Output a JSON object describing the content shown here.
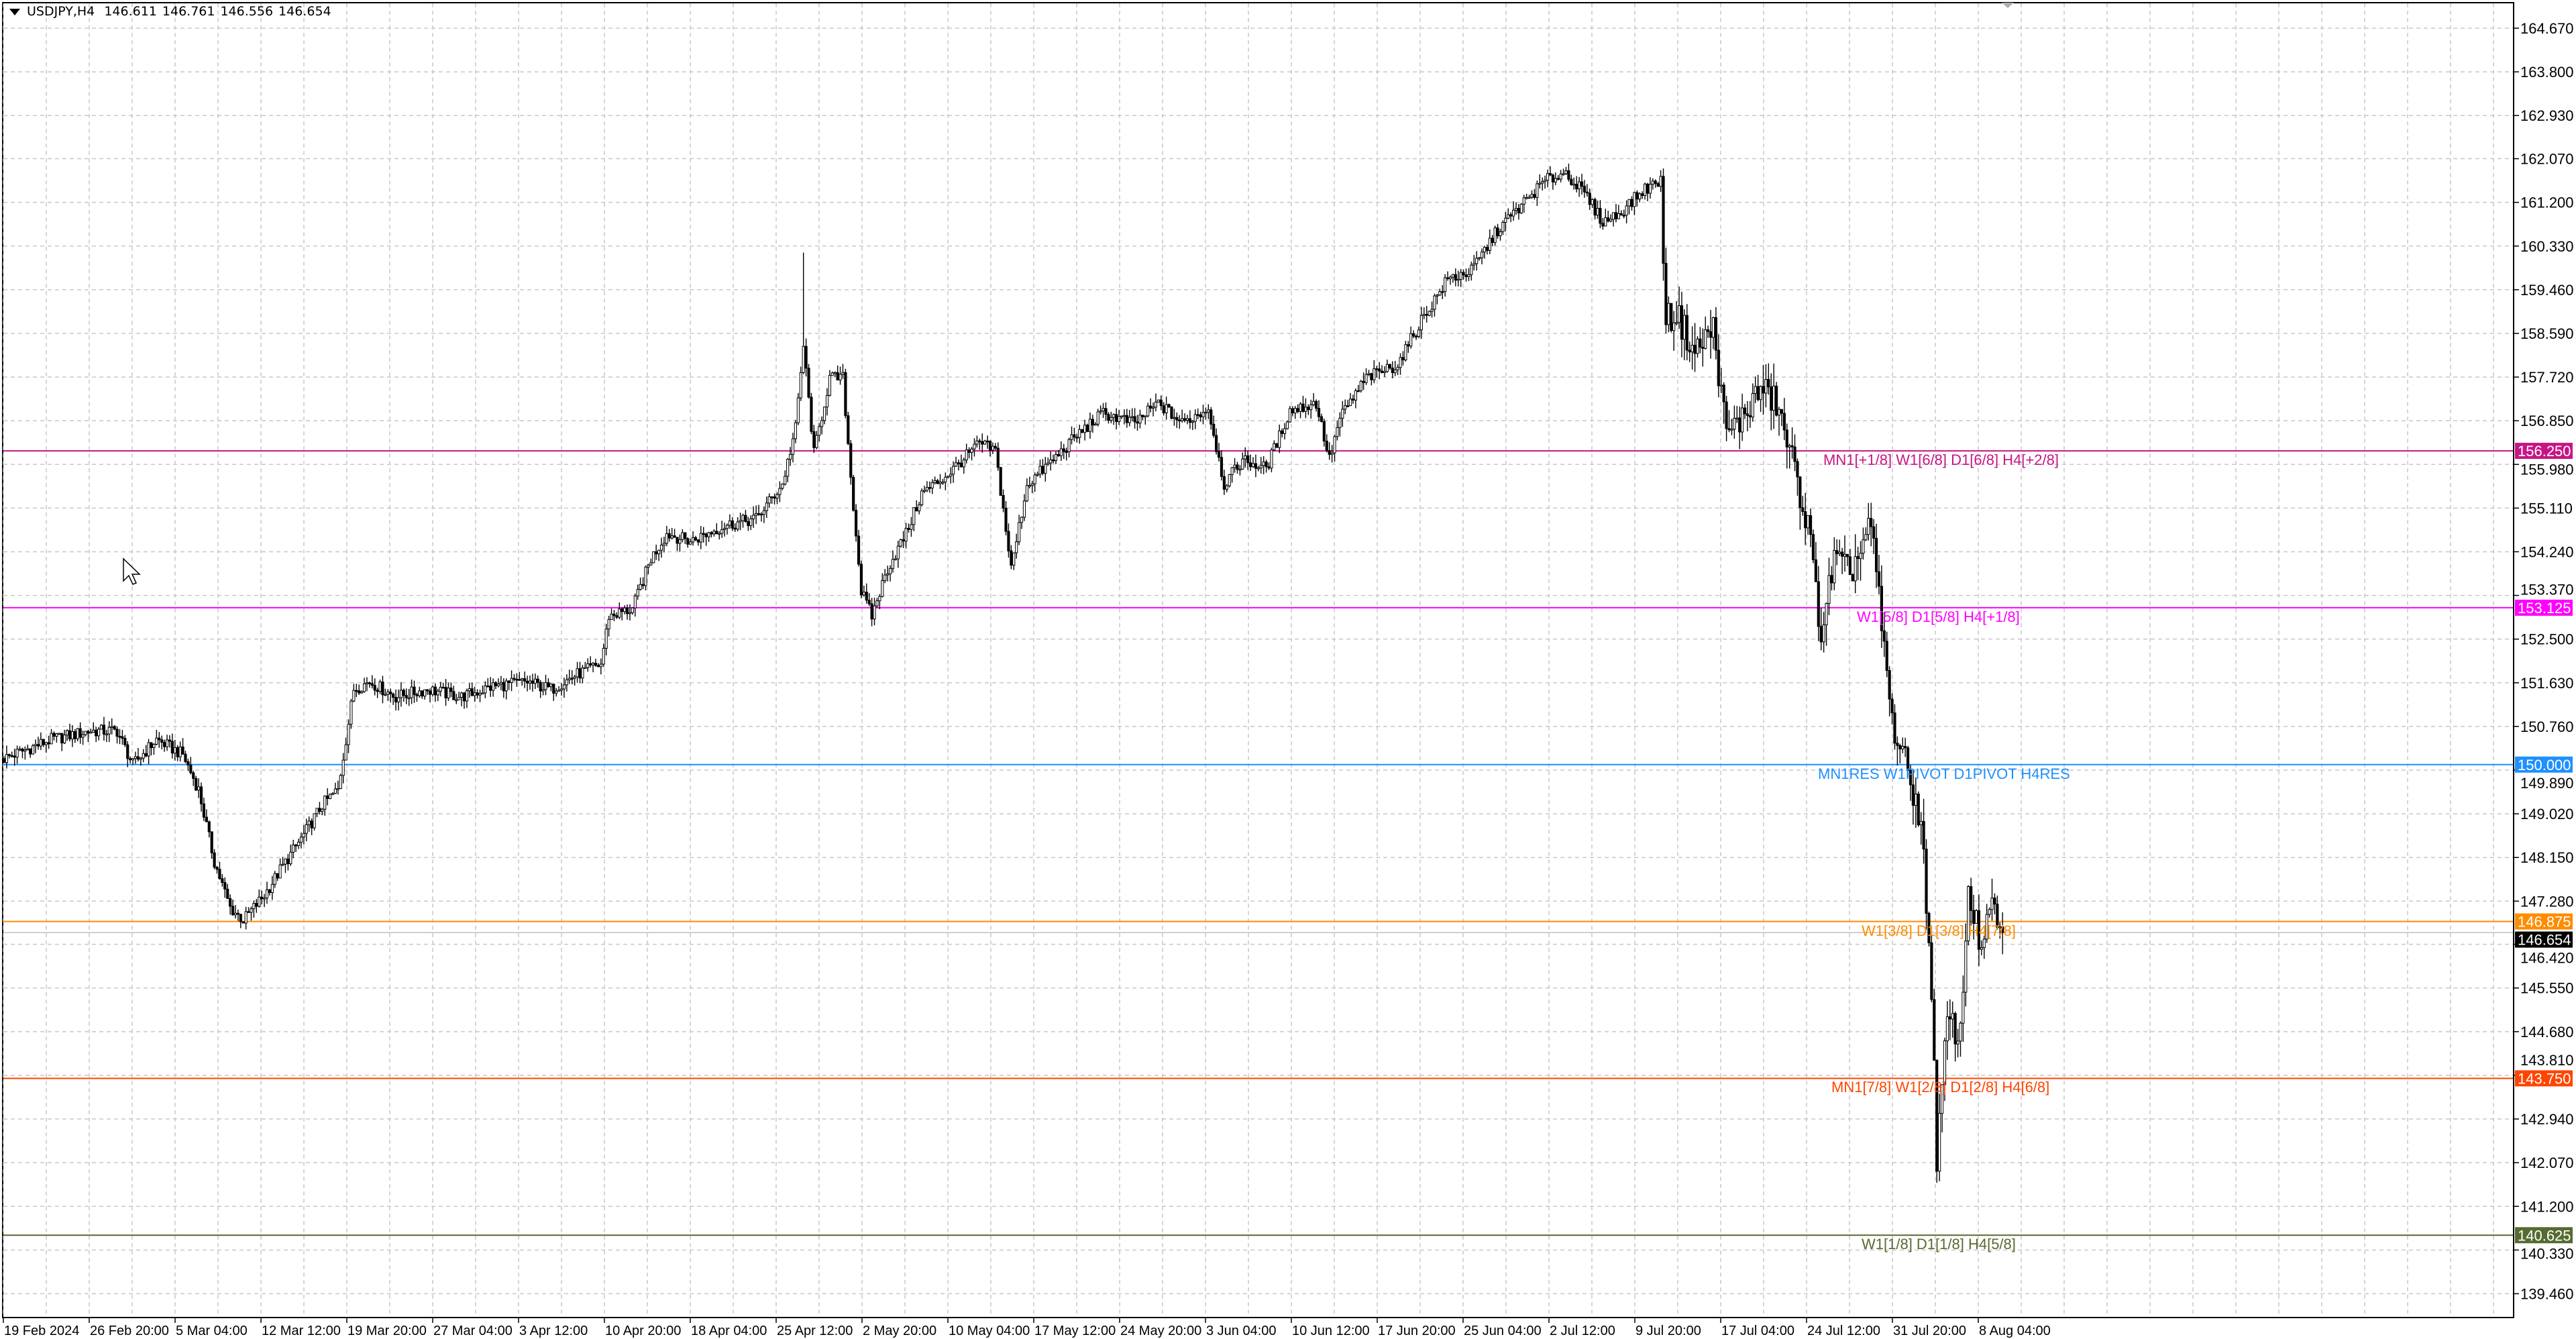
{
  "header": {
    "symbol": "USDJPY,H4",
    "open": "146.611",
    "high": "146.761",
    "low": "146.556",
    "close": "146.654"
  },
  "chart_data": {
    "type": "candlestick",
    "symbol": "USDJPY",
    "timeframe": "H4",
    "ylim": [
      139.0,
      165.2
    ],
    "grid": true,
    "price_ticks": [
      "164.670",
      "163.800",
      "162.930",
      "162.070",
      "161.200",
      "160.330",
      "159.460",
      "158.590",
      "157.720",
      "156.850",
      "155.980",
      "155.110",
      "154.240",
      "153.370",
      "152.500",
      "151.630",
      "150.760",
      "149.890",
      "149.020",
      "148.150",
      "147.280",
      "146.420",
      "145.550",
      "144.680",
      "143.810",
      "142.940",
      "142.070",
      "141.200",
      "140.330",
      "139.460"
    ],
    "time_ticks": [
      "19 Feb 2024",
      "26 Feb 20:00",
      "5 Mar 04:00",
      "12 Mar 12:00",
      "19 Mar 20:00",
      "27 Mar 04:00",
      "3 Apr 12:00",
      "10 Apr 20:00",
      "18 Apr 04:00",
      "25 Apr 12:00",
      "2 May 20:00",
      "10 May 04:00",
      "17 May 12:00",
      "24 May 20:00",
      "3 Jun 04:00",
      "10 Jun 12:00",
      "17 Jun 20:00",
      "25 Jun 04:00",
      "2 Jul 12:00",
      "9 Jul 20:00",
      "17 Jul 04:00",
      "24 Jul 12:00",
      "31 Jul 20:00",
      "8 Aug 04:00"
    ],
    "current_price": {
      "value": 146.654,
      "label": "146.654",
      "color": "#000000"
    },
    "close_path_bar_close": [
      [
        0,
        150.12
      ],
      [
        18,
        150.5
      ],
      [
        33,
        150.67
      ],
      [
        43,
        150.67
      ],
      [
        49,
        150.0
      ],
      [
        58,
        150.5
      ],
      [
        68,
        150.2
      ],
      [
        74,
        149.5
      ],
      [
        80,
        148.06
      ],
      [
        86,
        147.15
      ],
      [
        91,
        146.9
      ],
      [
        99,
        147.4
      ],
      [
        105,
        147.9
      ],
      [
        114,
        148.6
      ],
      [
        121,
        149.2
      ],
      [
        127,
        149.5
      ],
      [
        133,
        151.5
      ],
      [
        139,
        151.65
      ],
      [
        149,
        151.35
      ],
      [
        161,
        151.5
      ],
      [
        174,
        151.35
      ],
      [
        186,
        151.56
      ],
      [
        199,
        151.65
      ],
      [
        208,
        151.5
      ],
      [
        218,
        151.8
      ],
      [
        227,
        152.0
      ],
      [
        230,
        152.96
      ],
      [
        239,
        153.1
      ],
      [
        246,
        154.1
      ],
      [
        252,
        154.6
      ],
      [
        261,
        154.45
      ],
      [
        274,
        154.76
      ],
      [
        286,
        154.9
      ],
      [
        296,
        155.58
      ],
      [
        301,
        156.7
      ],
      [
        304,
        158.35
      ],
      [
        308,
        156.2
      ],
      [
        314,
        157.7
      ],
      [
        319,
        157.7
      ],
      [
        322,
        155.74
      ],
      [
        326,
        153.45
      ],
      [
        330,
        152.96
      ],
      [
        336,
        153.9
      ],
      [
        343,
        154.6
      ],
      [
        349,
        155.4
      ],
      [
        358,
        155.74
      ],
      [
        371,
        156.4
      ],
      [
        377,
        156.25
      ],
      [
        383,
        153.9
      ],
      [
        389,
        155.58
      ],
      [
        399,
        156.07
      ],
      [
        408,
        156.56
      ],
      [
        418,
        157.0
      ],
      [
        430,
        156.8
      ],
      [
        439,
        157.2
      ],
      [
        448,
        156.8
      ],
      [
        458,
        157.1
      ],
      [
        464,
        155.58
      ],
      [
        471,
        156.07
      ],
      [
        480,
        155.9
      ],
      [
        489,
        157.05
      ],
      [
        499,
        157.2
      ],
      [
        504,
        156.07
      ],
      [
        508,
        156.9
      ],
      [
        518,
        157.7
      ],
      [
        530,
        157.97
      ],
      [
        539,
        158.85
      ],
      [
        549,
        159.67
      ],
      [
        558,
        159.83
      ],
      [
        568,
        160.65
      ],
      [
        577,
        161.14
      ],
      [
        586,
        161.63
      ],
      [
        594,
        161.8
      ],
      [
        602,
        161.3
      ],
      [
        608,
        160.81
      ],
      [
        614,
        160.97
      ],
      [
        624,
        161.47
      ],
      [
        630,
        161.63
      ],
      [
        632,
        158.85
      ],
      [
        636,
        159.0
      ],
      [
        643,
        158.2
      ],
      [
        650,
        158.7
      ],
      [
        655,
        156.56
      ],
      [
        661,
        156.9
      ],
      [
        668,
        157.5
      ],
      [
        674,
        157.2
      ],
      [
        680,
        156.07
      ],
      [
        686,
        154.76
      ],
      [
        691,
        152.6
      ],
      [
        696,
        154.1
      ],
      [
        702,
        153.8
      ],
      [
        710,
        154.76
      ],
      [
        714,
        152.8
      ],
      [
        718,
        150.84
      ],
      [
        724,
        149.86
      ],
      [
        729,
        148.87
      ],
      [
        733,
        145.6
      ],
      [
        735,
        142.17
      ],
      [
        739,
        144.9
      ],
      [
        744,
        144.6
      ],
      [
        747,
        147.57
      ],
      [
        752,
        146.26
      ],
      [
        756,
        147.2
      ],
      [
        760,
        146.654
      ]
    ],
    "extremes": {
      "spike_high": {
        "bar": 304,
        "price": 160.2
      },
      "spike_low": {
        "bar": 736,
        "price": 141.7
      }
    },
    "levels": [
      {
        "price": 156.25,
        "price_label": "156.250",
        "text": "MN1[+1/8] W1[6/8] D1[6/8] H4[+2/8]",
        "color": "#c71585"
      },
      {
        "price": 153.125,
        "price_label": "153.125",
        "text": "W1[5/8] D1[5/8] H4[+1/8]",
        "color": "#ff00ff"
      },
      {
        "price": 150.0,
        "price_label": "150.000",
        "text": "MN1RES W1PIVOT D1PIVOT H4RES",
        "color": "#1e90ff"
      },
      {
        "price": 146.875,
        "price_label": "146.875",
        "text": "W1[3/8] D1[3/8] H4[7/8]",
        "color": "#ff8c00"
      },
      {
        "price": 143.75,
        "price_label": "143.750",
        "text": "MN1[7/8] W1[2/8] D1[2/8] H4[6/8]",
        "color": "#ff4500"
      },
      {
        "price": 140.625,
        "price_label": "140.625",
        "text": "W1[1/8] D1[1/8] H4[5/8]",
        "color": "#556b2f"
      }
    ]
  }
}
